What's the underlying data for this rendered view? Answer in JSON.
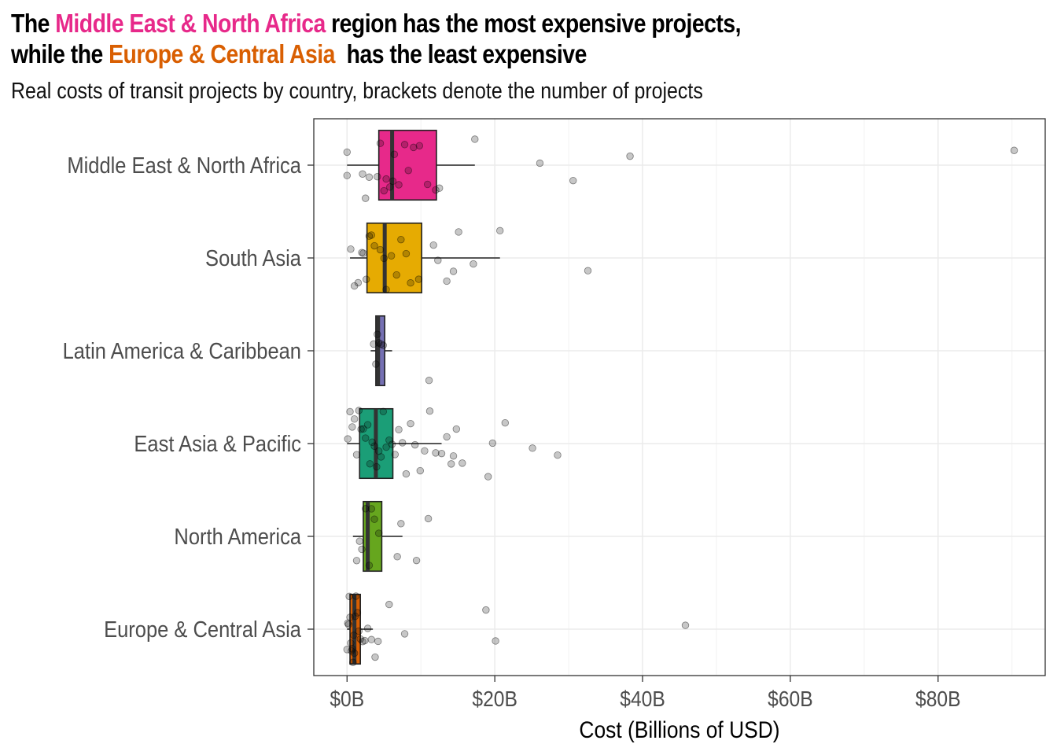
{
  "title": {
    "part1": "The ",
    "highlight1": "Middle East & North Africa",
    "part2": " region has the most expensive projects,",
    "part3": "while the ",
    "highlight2": "Europe & Central Asia",
    "part4": "  has the least expensive",
    "highlight1_color": "#e7298a",
    "highlight2_color": "#d95f02"
  },
  "subtitle": "Real costs of transit projects by country, brackets denote the number of projects",
  "chart_data": {
    "type": "boxplot",
    "orientation": "horizontal",
    "xlabel": "Cost (Billions of USD)",
    "ylabel": "",
    "xlim": [
      -4.5,
      94.5
    ],
    "x_ticks": [
      0,
      20,
      40,
      60,
      80
    ],
    "x_tick_labels": [
      "$0B",
      "$20B",
      "$40B",
      "$60B",
      "$80B"
    ],
    "grid": true,
    "legend": "none",
    "categories": [
      "Middle East & North Africa",
      "South Asia",
      "Latin America & Caribbean",
      "East Asia & Pacific",
      "North America",
      "Europe & Central Asia"
    ],
    "series": [
      {
        "category": "Middle East & North Africa",
        "color": "#e7298a",
        "q1": 4.3,
        "median": 6.1,
        "q3": 12.1,
        "whisker_low": 0.0,
        "whisker_high": 17.3,
        "points": [
          0.0,
          0.0,
          2.1,
          2.5,
          3.0,
          4.1,
          4.5,
          5.0,
          5.3,
          5.8,
          6.2,
          6.4,
          7.0,
          7.8,
          8.3,
          9.0,
          9.8,
          10.9,
          12.0,
          12.5,
          17.3,
          26.1,
          30.6,
          38.3,
          90.3
        ]
      },
      {
        "category": "South Asia",
        "color": "#e6ab02",
        "q1": 2.7,
        "median": 5.1,
        "q3": 10.1,
        "whisker_low": 0.4,
        "whisker_high": 20.7,
        "points": [
          0.5,
          1.0,
          1.5,
          2.0,
          2.2,
          2.6,
          3.0,
          3.3,
          3.7,
          4.5,
          5.0,
          5.3,
          6.0,
          6.7,
          7.3,
          8.0,
          8.6,
          9.7,
          11.7,
          12.3,
          13.5,
          14.4,
          15.1,
          17.1,
          20.7,
          32.6
        ]
      },
      {
        "category": "Latin America & Caribbean",
        "color": "#7570b3",
        "q1": 3.9,
        "median": 4.2,
        "q3": 5.1,
        "whisker_low": 3.2,
        "whisker_high": 6.1,
        "points": [
          3.6,
          3.9,
          4.1,
          4.3,
          4.6,
          4.9,
          11.1
        ]
      },
      {
        "category": "East Asia & Pacific",
        "color": "#1b9e77",
        "q1": 1.7,
        "median": 3.9,
        "q3": 6.2,
        "whisker_low": 0.0,
        "whisker_high": 12.8,
        "points": [
          0.1,
          0.4,
          0.7,
          1.0,
          1.3,
          1.6,
          1.9,
          2.2,
          2.5,
          2.8,
          3.1,
          3.4,
          3.7,
          4.0,
          4.3,
          4.6,
          4.9,
          5.3,
          5.7,
          6.1,
          6.5,
          7.0,
          7.5,
          8.0,
          8.6,
          9.2,
          9.9,
          10.5,
          11.2,
          12.0,
          12.8,
          13.5,
          14.1,
          14.4,
          14.8,
          15.6,
          19.1,
          19.7,
          21.4,
          25.1,
          28.5
        ]
      },
      {
        "category": "North America",
        "color": "#66a61e",
        "q1": 2.2,
        "median": 2.8,
        "q3": 4.7,
        "whisker_low": 0.8,
        "whisker_high": 7.5,
        "points": [
          1.3,
          1.7,
          2.0,
          2.5,
          3.0,
          3.3,
          3.7,
          4.3,
          6.8,
          7.3,
          9.4,
          11.0
        ]
      },
      {
        "category": "Europe & Central Asia",
        "color": "#d95f02",
        "q1": 0.4,
        "median": 1.0,
        "q3": 1.8,
        "whisker_low": 0.0,
        "whisker_high": 3.5,
        "points": [
          0.0,
          0.1,
          0.2,
          0.3,
          0.4,
          0.5,
          0.6,
          0.7,
          0.8,
          0.9,
          1.0,
          1.1,
          1.2,
          1.4,
          1.6,
          1.8,
          2.1,
          2.4,
          2.8,
          3.3,
          3.8,
          4.2,
          5.7,
          7.8,
          18.8,
          20.1,
          45.8
        ]
      }
    ]
  }
}
